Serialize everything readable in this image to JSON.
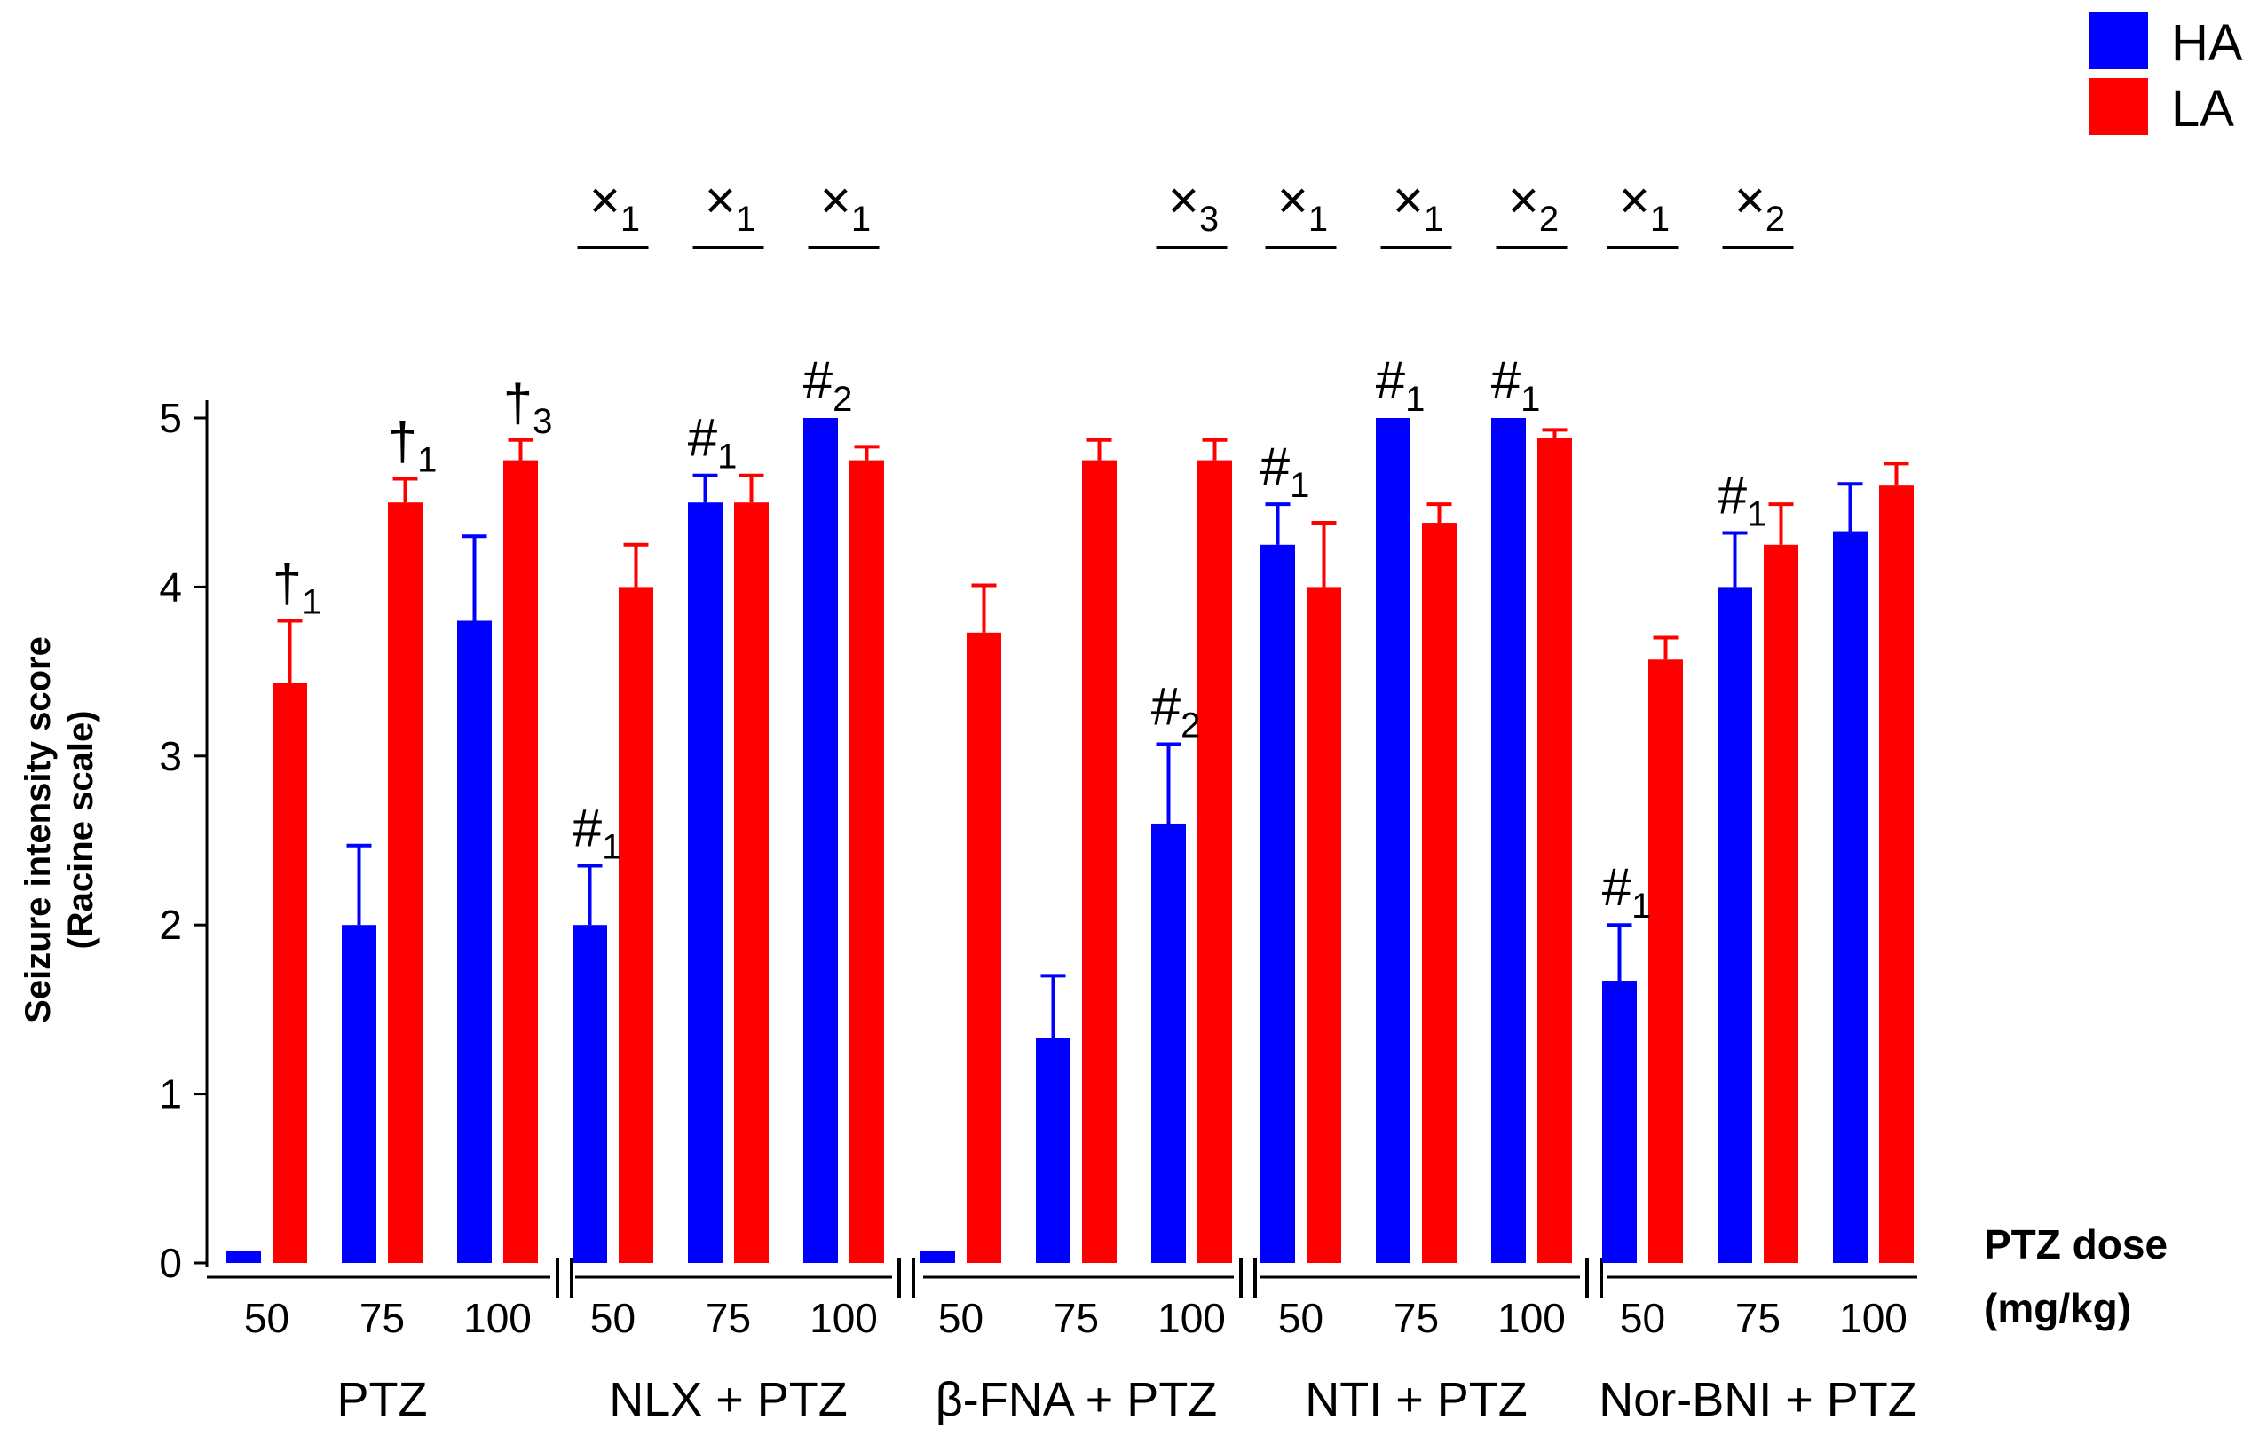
{
  "chart_data": {
    "type": "bar",
    "ylabel_line1": "Seizure intensity score",
    "ylabel_line2": "(Racine scale)",
    "xlabel_line1": "PTZ dose",
    "xlabel_line2": "(mg/kg)",
    "ylim": [
      0,
      5
    ],
    "yticks": [
      "0",
      "1",
      "2",
      "3",
      "4",
      "5"
    ],
    "colors": {
      "HA": "#0000ff",
      "LA": "#ff0000"
    },
    "series": [
      {
        "name": "HA"
      },
      {
        "name": "LA"
      }
    ],
    "groups": [
      {
        "label": "PTZ",
        "doses": [
          {
            "dose": "50",
            "HA": 0,
            "HA_err": 0,
            "LA": 3.43,
            "LA_err": 0.37,
            "mark": {
              "text": "†",
              "sub": "1",
              "on": "LA"
            }
          },
          {
            "dose": "75",
            "HA": 2.0,
            "HA_err": 0.47,
            "LA": 4.5,
            "LA_err": 0.14,
            "mark": {
              "text": "†",
              "sub": "1",
              "on": "LA"
            }
          },
          {
            "dose": "100",
            "HA": 3.8,
            "HA_err": 0.5,
            "LA": 4.75,
            "LA_err": 0.12,
            "mark": {
              "text": "†",
              "sub": "3",
              "on": "LA"
            }
          }
        ]
      },
      {
        "label": "NLX + PTZ",
        "doses": [
          {
            "dose": "50",
            "HA": 2.0,
            "HA_err": 0.35,
            "LA": 4.0,
            "LA_err": 0.25,
            "mark": {
              "text": "#",
              "sub": "1",
              "on": "HA"
            },
            "bracket": {
              "text": "×",
              "sub": "1"
            }
          },
          {
            "dose": "75",
            "HA": 4.5,
            "HA_err": 0.16,
            "LA": 4.5,
            "LA_err": 0.16,
            "mark": {
              "text": "#",
              "sub": "1",
              "on": "HA"
            },
            "bracket": {
              "text": "×",
              "sub": "1"
            }
          },
          {
            "dose": "100",
            "HA": 5.0,
            "HA_err": 0,
            "LA": 4.75,
            "LA_err": 0.08,
            "mark": {
              "text": "#",
              "sub": "2",
              "on": "HA"
            },
            "bracket": {
              "text": "×",
              "sub": "1"
            }
          }
        ]
      },
      {
        "label": "β-FNA + PTZ",
        "doses": [
          {
            "dose": "50",
            "HA": 0,
            "HA_err": 0,
            "LA": 3.73,
            "LA_err": 0.28
          },
          {
            "dose": "75",
            "HA": 1.33,
            "HA_err": 0.37,
            "LA": 4.75,
            "LA_err": 0.12
          },
          {
            "dose": "100",
            "HA": 2.6,
            "HA_err": 0.47,
            "LA": 4.75,
            "LA_err": 0.12,
            "mark": {
              "text": "#",
              "sub": "2",
              "on": "HA"
            },
            "bracket": {
              "text": "×",
              "sub": "3"
            }
          }
        ]
      },
      {
        "label": "NTI + PTZ",
        "doses": [
          {
            "dose": "50",
            "HA": 4.25,
            "HA_err": 0.24,
            "LA": 4.0,
            "LA_err": 0.38,
            "mark": {
              "text": "#",
              "sub": "1",
              "on": "HA"
            },
            "bracket": {
              "text": "×",
              "sub": "1"
            }
          },
          {
            "dose": "75",
            "HA": 5.0,
            "HA_err": 0,
            "LA": 4.38,
            "LA_err": 0.11,
            "mark": {
              "text": "#",
              "sub": "1",
              "on": "HA"
            },
            "bracket": {
              "text": "×",
              "sub": "1"
            }
          },
          {
            "dose": "100",
            "HA": 5.0,
            "HA_err": 0,
            "LA": 4.88,
            "LA_err": 0.05,
            "mark": {
              "text": "#",
              "sub": "1",
              "on": "HA"
            },
            "bracket": {
              "text": "×",
              "sub": "2"
            }
          }
        ]
      },
      {
        "label": "Nor-BNI + PTZ",
        "doses": [
          {
            "dose": "50",
            "HA": 1.67,
            "HA_err": 0.33,
            "LA": 3.57,
            "LA_err": 0.13,
            "mark": {
              "text": "#",
              "sub": "1",
              "on": "HA"
            },
            "bracket": {
              "text": "×",
              "sub": "1"
            }
          },
          {
            "dose": "75",
            "HA": 4.0,
            "HA_err": 0.32,
            "LA": 4.25,
            "LA_err": 0.24,
            "mark": {
              "text": "#",
              "sub": "1",
              "on": "HA"
            },
            "bracket": {
              "text": "×",
              "sub": "2"
            }
          },
          {
            "dose": "100",
            "HA": 4.33,
            "HA_err": 0.28,
            "LA": 4.6,
            "LA_err": 0.13
          }
        ]
      }
    ]
  }
}
